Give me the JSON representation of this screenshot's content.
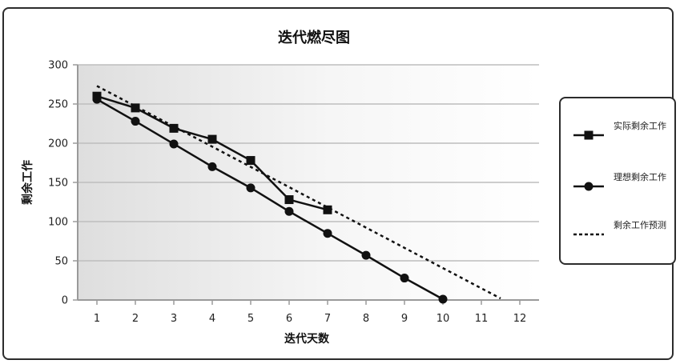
{
  "chart_data": {
    "type": "line",
    "title": "迭代燃尽图",
    "xlabel": "迭代天数",
    "ylabel": "剩余工作",
    "x": [
      1,
      2,
      3,
      4,
      5,
      6,
      7,
      8,
      9,
      10,
      11,
      12
    ],
    "xlim": [
      0.5,
      12.5
    ],
    "ylim": [
      0,
      300
    ],
    "yticks": [
      0,
      50,
      100,
      150,
      200,
      250,
      300
    ],
    "grid": true,
    "legend_position": "right",
    "series": [
      {
        "name": "实际剩余工作",
        "marker": "square",
        "line": "solid",
        "color": "#111111",
        "x": [
          1,
          2,
          3,
          4,
          5,
          6,
          7
        ],
        "values": [
          260,
          245,
          219,
          205,
          178,
          128,
          115
        ]
      },
      {
        "name": "理想剩余工作",
        "marker": "circle",
        "line": "solid",
        "color": "#111111",
        "x": [
          1,
          2,
          3,
          4,
          5,
          6,
          7,
          8,
          9,
          10
        ],
        "values": [
          256,
          228,
          199,
          170,
          143,
          113,
          85,
          57,
          28,
          1
        ]
      },
      {
        "name": "剩余工作预测",
        "marker": "none",
        "line": "dashed",
        "color": "#111111",
        "x": [
          1,
          11.5
        ],
        "values": [
          273,
          2
        ]
      }
    ]
  }
}
